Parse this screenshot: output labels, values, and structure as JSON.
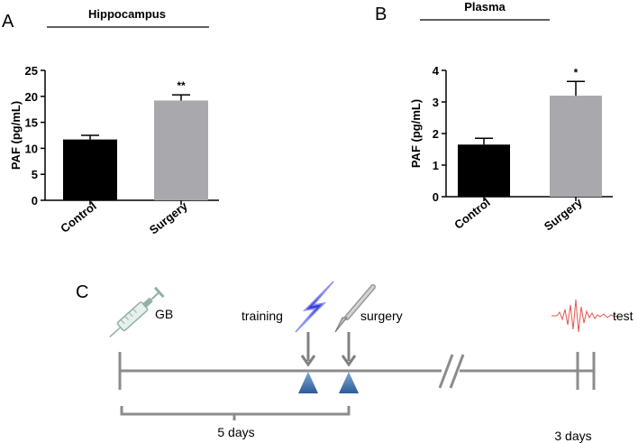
{
  "chart_data": [
    {
      "type": "bar",
      "panel": "A",
      "title": "Hippocampus",
      "ylabel": "PAF (pg/mL)",
      "xlabel": "",
      "categories": [
        "Control",
        "Surgery"
      ],
      "values": [
        11.7,
        19.2
      ],
      "errors": [
        0.8,
        1.1
      ],
      "significance": [
        "",
        "**"
      ],
      "ylim": [
        0,
        25
      ],
      "yticks": [
        0,
        5,
        10,
        15,
        20,
        25
      ],
      "colors": [
        "#000000",
        "#a9a9ad"
      ]
    },
    {
      "type": "bar",
      "panel": "B",
      "title": "Plasma",
      "ylabel": "PAF (pg/mL)",
      "xlabel": "",
      "categories": [
        "Control",
        "Surgery"
      ],
      "values": [
        1.65,
        3.2
      ],
      "errors": [
        0.2,
        0.45
      ],
      "significance": [
        "",
        "*"
      ],
      "ylim": [
        0,
        4
      ],
      "yticks": [
        0,
        1,
        2,
        3,
        4
      ],
      "colors": [
        "#000000",
        "#a9a9ad"
      ]
    }
  ],
  "timeline": {
    "panel": "C",
    "events": [
      "GB",
      "training",
      "surgery",
      "test"
    ],
    "event_icons": [
      "syringe-icon",
      "lightning-icon",
      "scalpel-icon",
      "eeg-wave-icon"
    ],
    "spans": [
      "5 days",
      "3 days"
    ]
  }
}
